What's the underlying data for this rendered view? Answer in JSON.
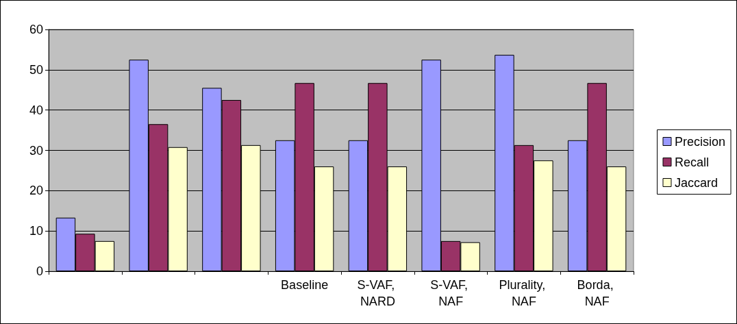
{
  "chart_data": {
    "type": "bar",
    "categories": [
      null,
      null,
      null,
      "Baseline",
      "S-VAF, NARD",
      "S-VAF, NAF",
      "Plurality, NAF",
      "Borda, NAF"
    ],
    "series": [
      {
        "name": "Precision",
        "color": "#9999ff",
        "values": [
          13.3,
          52.5,
          45.5,
          32.5,
          32.5,
          52.5,
          53.7,
          32.5
        ]
      },
      {
        "name": "Recall",
        "color": "#993366",
        "values": [
          9.3,
          36.5,
          42.5,
          46.7,
          46.7,
          7.5,
          31.3,
          46.7
        ]
      },
      {
        "name": "Jaccard",
        "color": "#ffffcc",
        "values": [
          7.5,
          30.8,
          31.3,
          26,
          26,
          7.2,
          27.5,
          26
        ]
      }
    ],
    "ylim": [
      0,
      60
    ],
    "yticks": [
      0,
      10,
      20,
      30,
      40,
      50,
      60
    ],
    "grid": "y",
    "legend": "right"
  }
}
